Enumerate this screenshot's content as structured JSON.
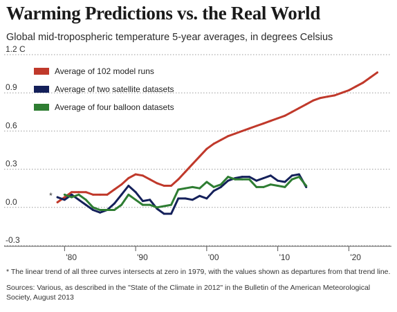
{
  "title": "Warming Predictions vs. the Real World",
  "subtitle": "Global mid-tropospheric temperature 5-year averages, in degrees Celsius",
  "footnote": "* The linear trend of all three curves intersects at zero in 1979, with the values shown as departures from that trend line.",
  "sources": "Sources: Various, as described in the \"State of the Climate in 2012\" in the Bulletin of the American Meteorological Society, August 2013",
  "chart_data": {
    "type": "line",
    "title": "Warming Predictions vs. the Real World",
    "xlim": [
      1975,
      2026
    ],
    "ylim": [
      -0.3,
      1.2
    ],
    "y_ticks": [
      {
        "value": 1.2,
        "label": "1.2 C"
      },
      {
        "value": 0.9,
        "label": "0.9"
      },
      {
        "value": 0.6,
        "label": "0.6"
      },
      {
        "value": 0.3,
        "label": "0.3"
      },
      {
        "value": 0.0,
        "label": "0.0"
      },
      {
        "value": -0.3,
        "label": "-0.3"
      }
    ],
    "x_ticks": [
      {
        "value": 1980,
        "label": "'80"
      },
      {
        "value": 1990,
        "label": "'90"
      },
      {
        "value": 2000,
        "label": "'00"
      },
      {
        "value": 2010,
        "label": "'10"
      },
      {
        "value": 2020,
        "label": "'20"
      }
    ],
    "grid": "horizontal dotted",
    "legend": "top-left",
    "annotation": {
      "text": "*",
      "x": 1979,
      "y": 0.06
    },
    "series": [
      {
        "name": "Average of 102 model runs",
        "color": "#c0392b",
        "x": [
          1979,
          1980,
          1981,
          1982,
          1983,
          1984,
          1985,
          1986,
          1987,
          1988,
          1989,
          1990,
          1991,
          1992,
          1993,
          1994,
          1995,
          1996,
          1997,
          1998,
          1999,
          2000,
          2001,
          2002,
          2003,
          2004,
          2005,
          2006,
          2007,
          2008,
          2009,
          2010,
          2011,
          2012,
          2013,
          2014,
          2015,
          2016,
          2017,
          2018,
          2019,
          2020,
          2021,
          2022,
          2023,
          2024
        ],
        "y": [
          0.04,
          0.08,
          0.12,
          0.12,
          0.12,
          0.1,
          0.1,
          0.1,
          0.14,
          0.18,
          0.23,
          0.26,
          0.25,
          0.22,
          0.19,
          0.17,
          0.17,
          0.22,
          0.28,
          0.34,
          0.4,
          0.46,
          0.5,
          0.53,
          0.56,
          0.58,
          0.6,
          0.62,
          0.64,
          0.66,
          0.68,
          0.7,
          0.72,
          0.75,
          0.78,
          0.81,
          0.84,
          0.86,
          0.87,
          0.88,
          0.9,
          0.92,
          0.95,
          0.98,
          1.02,
          1.06
        ]
      },
      {
        "name": "Average of two satellite datasets",
        "color": "#14205a",
        "x": [
          1979,
          1980,
          1981,
          1982,
          1983,
          1984,
          1985,
          1986,
          1987,
          1988,
          1989,
          1990,
          1991,
          1992,
          1993,
          1994,
          1995,
          1996,
          1997,
          1998,
          1999,
          2000,
          2001,
          2002,
          2003,
          2004,
          2005,
          2006,
          2007,
          2008,
          2009,
          2010,
          2011,
          2012,
          2013,
          2014
        ],
        "y": [
          0.08,
          0.06,
          0.1,
          0.06,
          0.02,
          -0.02,
          -0.04,
          -0.02,
          0.03,
          0.1,
          0.17,
          0.12,
          0.05,
          0.06,
          -0.01,
          -0.05,
          -0.05,
          0.07,
          0.07,
          0.06,
          0.09,
          0.07,
          0.13,
          0.16,
          0.21,
          0.23,
          0.24,
          0.24,
          0.21,
          0.23,
          0.25,
          0.21,
          0.2,
          0.25,
          0.26,
          0.16
        ]
      },
      {
        "name": "Average of four balloon datasets",
        "color": "#2e7d32",
        "x": [
          1980,
          1981,
          1982,
          1983,
          1984,
          1985,
          1986,
          1987,
          1988,
          1989,
          1990,
          1991,
          1992,
          1993,
          1994,
          1995,
          1996,
          1997,
          1998,
          1999,
          2000,
          2001,
          2002,
          2003,
          2004,
          2005,
          2006,
          2007,
          2008,
          2009,
          2010,
          2011,
          2012,
          2013,
          2014
        ],
        "y": [
          0.1,
          0.08,
          0.1,
          0.06,
          0.0,
          -0.02,
          -0.02,
          -0.02,
          0.02,
          0.1,
          0.06,
          0.02,
          0.02,
          0.0,
          0.01,
          0.02,
          0.14,
          0.15,
          0.16,
          0.15,
          0.2,
          0.16,
          0.18,
          0.24,
          0.22,
          0.22,
          0.22,
          0.16,
          0.16,
          0.18,
          0.17,
          0.16,
          0.22,
          0.24,
          0.17
        ]
      }
    ]
  }
}
